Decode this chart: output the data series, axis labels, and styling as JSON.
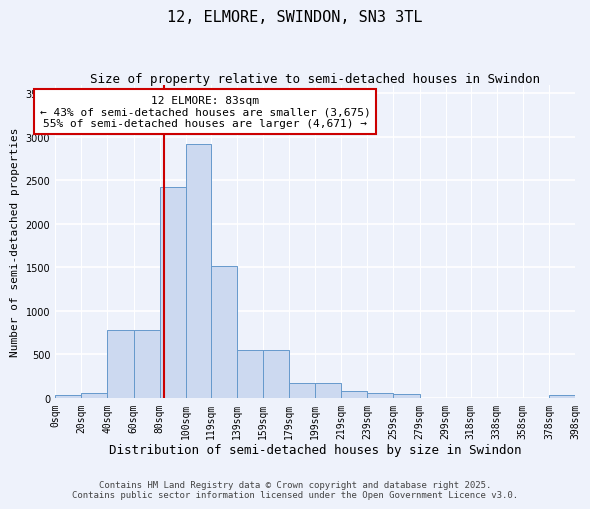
{
  "title": "12, ELMORE, SWINDON, SN3 3TL",
  "subtitle": "Size of property relative to semi-detached houses in Swindon",
  "xlabel": "Distribution of semi-detached houses by size in Swindon",
  "ylabel": "Number of semi-detached properties",
  "bins": [
    "0sqm",
    "20sqm",
    "40sqm",
    "60sqm",
    "80sqm",
    "100sqm",
    "119sqm",
    "139sqm",
    "159sqm",
    "179sqm",
    "199sqm",
    "219sqm",
    "239sqm",
    "259sqm",
    "279sqm",
    "299sqm",
    "318sqm",
    "338sqm",
    "358sqm",
    "378sqm",
    "398sqm"
  ],
  "bin_edges": [
    0,
    20,
    40,
    60,
    80,
    100,
    119,
    139,
    159,
    179,
    199,
    219,
    239,
    259,
    279,
    299,
    318,
    338,
    358,
    378,
    398
  ],
  "values": [
    30,
    50,
    780,
    780,
    2420,
    2920,
    1510,
    550,
    550,
    175,
    175,
    80,
    55,
    45,
    0,
    0,
    0,
    0,
    0,
    30
  ],
  "bar_color": "#ccd9f0",
  "bar_edge_color": "#6699cc",
  "property_value": 83,
  "vline_color": "#cc0000",
  "annotation_line1": "12 ELMORE: 83sqm",
  "annotation_line2": "← 43% of semi-detached houses are smaller (3,675)",
  "annotation_line3": "55% of semi-detached houses are larger (4,671) →",
  "annotation_box_color": "#ffffff",
  "annotation_box_edge_color": "#cc0000",
  "ylim": [
    0,
    3600
  ],
  "yticks": [
    0,
    500,
    1000,
    1500,
    2000,
    2500,
    3000,
    3500
  ],
  "footer_line1": "Contains HM Land Registry data © Crown copyright and database right 2025.",
  "footer_line2": "Contains public sector information licensed under the Open Government Licence v3.0.",
  "bg_color": "#eef2fb",
  "grid_color": "#ffffff",
  "title_fontsize": 11,
  "subtitle_fontsize": 9,
  "ylabel_fontsize": 8,
  "xlabel_fontsize": 9,
  "tick_fontsize": 7,
  "annotation_fontsize": 8,
  "footer_fontsize": 6.5
}
